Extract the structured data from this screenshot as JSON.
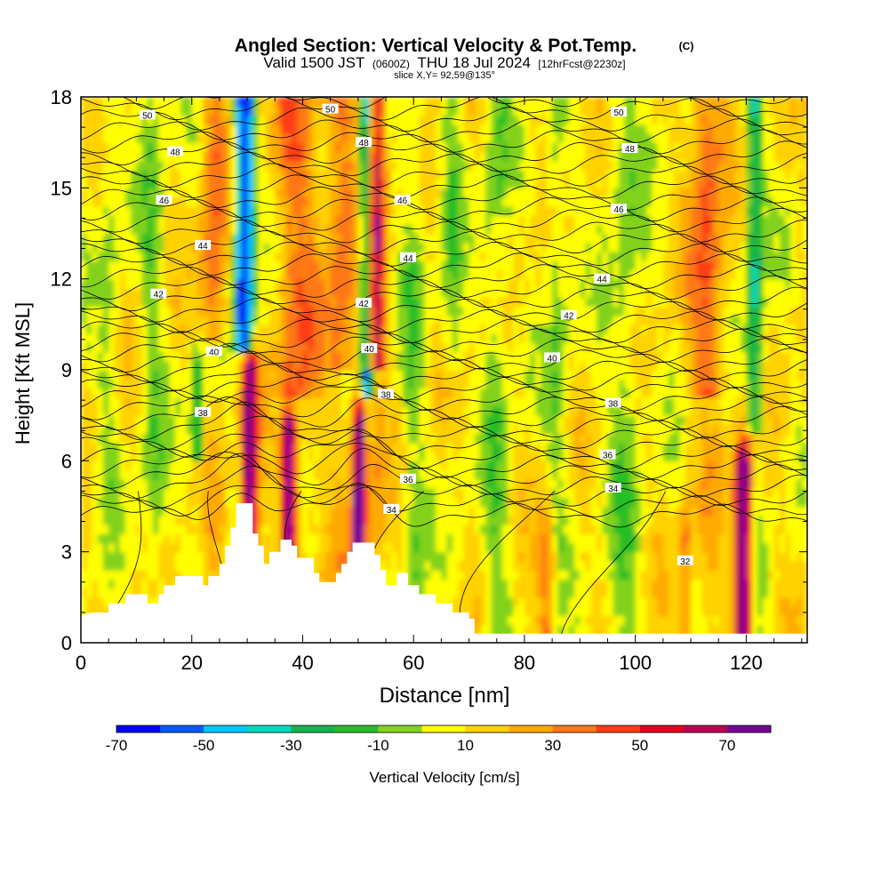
{
  "chart_data": {
    "type": "heatmap",
    "title": "Angled Section: Vertical Velocity & Pot.Temp.",
    "title_mark": "(C)",
    "subtitle_parts": [
      "Valid 1500 JST",
      "(0600Z)",
      "THU 18 Jul 2024",
      "[12hrFcst@2230z]"
    ],
    "slice_label": "slice X,Y= 92,59@135°",
    "xlabel": "Distance [nm]",
    "ylabel": "Height [Kft MSL]",
    "xlim": [
      0,
      131
    ],
    "ylim": [
      0,
      18
    ],
    "x_ticks": [
      "0",
      "20",
      "40",
      "60",
      "80",
      "100",
      "120"
    ],
    "y_ticks": [
      "0",
      "3",
      "6",
      "9",
      "12",
      "15",
      "18"
    ],
    "colorbar": {
      "label": "Vertical Velocity [cm/s]",
      "tick_labels": [
        "-70",
        "-50",
        "-30",
        "-10",
        "10",
        "30",
        "50",
        "70"
      ],
      "colors": [
        "#0000ff",
        "#005aff",
        "#00c8ff",
        "#00dcbe",
        "#14b450",
        "#28be28",
        "#82d21e",
        "#ffff00",
        "#ffd200",
        "#ffaa00",
        "#ff7814",
        "#ff3c14",
        "#e6001e",
        "#be0050",
        "#780096"
      ]
    },
    "contour_labels": [
      {
        "text": "50",
        "x": 12,
        "y": 17.4
      },
      {
        "text": "50",
        "x": 45,
        "y": 17.6
      },
      {
        "text": "50",
        "x": 97,
        "y": 17.5
      },
      {
        "text": "48",
        "x": 17,
        "y": 16.2
      },
      {
        "text": "48",
        "x": 51,
        "y": 16.5
      },
      {
        "text": "48",
        "x": 99,
        "y": 16.3
      },
      {
        "text": "46",
        "x": 15,
        "y": 14.6
      },
      {
        "text": "46",
        "x": 58,
        "y": 14.6
      },
      {
        "text": "46",
        "x": 97,
        "y": 14.3
      },
      {
        "text": "44",
        "x": 22,
        "y": 13.1
      },
      {
        "text": "44",
        "x": 59,
        "y": 12.7
      },
      {
        "text": "44",
        "x": 94,
        "y": 12.0
      },
      {
        "text": "42",
        "x": 14,
        "y": 11.5
      },
      {
        "text": "42",
        "x": 51,
        "y": 11.2
      },
      {
        "text": "42",
        "x": 88,
        "y": 10.8
      },
      {
        "text": "40",
        "x": 24,
        "y": 9.6
      },
      {
        "text": "40",
        "x": 52,
        "y": 9.7
      },
      {
        "text": "40",
        "x": 85,
        "y": 9.4
      },
      {
        "text": "38",
        "x": 22,
        "y": 7.6
      },
      {
        "text": "38",
        "x": 55,
        "y": 8.2
      },
      {
        "text": "38",
        "x": 96,
        "y": 7.9
      },
      {
        "text": "36",
        "x": 59,
        "y": 5.4
      },
      {
        "text": "36",
        "x": 95,
        "y": 6.2
      },
      {
        "text": "34",
        "x": 56,
        "y": 4.4
      },
      {
        "text": "34",
        "x": 96,
        "y": 5.1
      },
      {
        "text": "32",
        "x": 109,
        "y": 2.7
      }
    ],
    "terrain": [
      [
        0,
        0.9
      ],
      [
        2,
        1.0
      ],
      [
        5,
        1.0
      ],
      [
        5,
        1.3
      ],
      [
        8,
        1.3
      ],
      [
        8,
        1.6
      ],
      [
        12,
        1.6
      ],
      [
        12,
        1.3
      ],
      [
        14,
        1.3
      ],
      [
        14,
        1.6
      ],
      [
        15,
        1.6
      ],
      [
        15,
        1.9
      ],
      [
        17,
        1.9
      ],
      [
        17,
        2.2
      ],
      [
        22,
        2.2
      ],
      [
        22,
        1.9
      ],
      [
        23,
        1.9
      ],
      [
        23,
        2.2
      ],
      [
        25,
        2.2
      ],
      [
        25,
        2.6
      ],
      [
        26,
        2.6
      ],
      [
        26,
        3.2
      ],
      [
        27,
        3.2
      ],
      [
        27,
        3.8
      ],
      [
        28,
        3.8
      ],
      [
        28,
        4.6
      ],
      [
        31,
        4.6
      ],
      [
        31,
        3.6
      ],
      [
        32,
        3.6
      ],
      [
        32,
        3.2
      ],
      [
        33,
        3.2
      ],
      [
        33,
        2.6
      ],
      [
        34,
        2.6
      ],
      [
        34,
        3.0
      ],
      [
        36,
        3.0
      ],
      [
        36,
        3.4
      ],
      [
        38,
        3.4
      ],
      [
        38,
        3.2
      ],
      [
        39,
        3.2
      ],
      [
        39,
        2.8
      ],
      [
        42,
        2.8
      ],
      [
        42,
        2.3
      ],
      [
        43,
        2.3
      ],
      [
        43,
        2.0
      ],
      [
        46,
        2.0
      ],
      [
        46,
        2.3
      ],
      [
        47,
        2.3
      ],
      [
        47,
        2.6
      ],
      [
        48,
        2.6
      ],
      [
        48,
        3.0
      ],
      [
        49,
        3.0
      ],
      [
        49,
        3.3
      ],
      [
        53,
        3.3
      ],
      [
        53,
        2.9
      ],
      [
        54,
        2.9
      ],
      [
        54,
        2.4
      ],
      [
        55,
        2.4
      ],
      [
        55,
        1.9
      ],
      [
        57,
        1.9
      ],
      [
        57,
        2.3
      ],
      [
        59,
        2.3
      ],
      [
        59,
        1.9
      ],
      [
        61,
        1.9
      ],
      [
        61,
        1.6
      ],
      [
        64,
        1.6
      ],
      [
        64,
        1.3
      ],
      [
        67,
        1.3
      ],
      [
        67,
        1.0
      ],
      [
        70,
        1.0
      ],
      [
        70,
        0.8
      ],
      [
        71,
        0.8
      ],
      [
        71,
        0.3
      ],
      [
        131,
        0.3
      ]
    ]
  }
}
